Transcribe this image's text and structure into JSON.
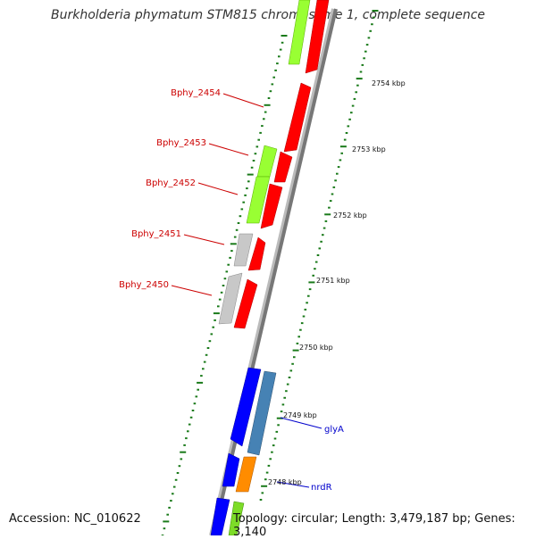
{
  "title": "Burkholderia phymatum STM815 chromosome 1, complete sequence",
  "footer": {
    "accession": "Accession: NC_010622",
    "summary": "Topology: circular; Length: 3,479,187 bp; Genes: 3,140"
  },
  "axis": {
    "ticks": [
      {
        "label": "2754 kbp"
      },
      {
        "label": "2753 kbp"
      },
      {
        "label": "2752 kbp"
      },
      {
        "label": "2751 kbp"
      },
      {
        "label": "2750 kbp"
      },
      {
        "label": "2749 kbp"
      },
      {
        "label": "2748 kbp"
      }
    ]
  },
  "gene_labels": [
    {
      "text": "Bphy_2454",
      "color": "#cc0000"
    },
    {
      "text": "Bphy_2453",
      "color": "#cc0000"
    },
    {
      "text": "Bphy_2452",
      "color": "#cc0000"
    },
    {
      "text": "Bphy_2451",
      "color": "#cc0000"
    },
    {
      "text": "Bphy_2450",
      "color": "#cc0000"
    },
    {
      "text": "glyA",
      "color": "#0000cc"
    },
    {
      "text": "nrdR",
      "color": "#0000cc"
    }
  ],
  "colors": {
    "red_feature": "#ff0000",
    "green_feature": "#99ff33",
    "gray_feature": "#c8c8c8",
    "blue_feature": "#0000ff",
    "steel_feature": "#4682b4",
    "orange_feature": "#ff8c00",
    "backbone": "#888888",
    "gc_dots": "#1a7a1a"
  }
}
